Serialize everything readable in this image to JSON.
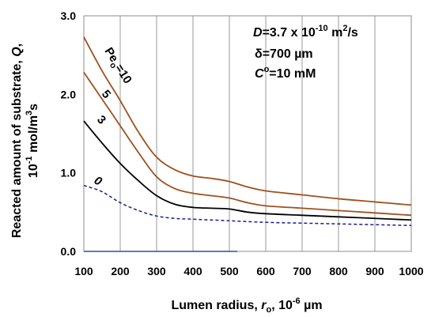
{
  "chart_data": {
    "type": "line",
    "xlabel_prefix": "Lumen radius, ",
    "xlabel_var": "r",
    "xlabel_sub": "o",
    "xlabel_unit_pre": ", 10",
    "xlabel_unit_exp": "-6",
    "xlabel_unit_post": " µm",
    "ylabel_line1_pre": "Reacted amount of substrate, ",
    "ylabel_line1_var": "Q",
    "ylabel_line1_post": ",",
    "ylabel_line2_pre": "10",
    "ylabel_line2_exp": "-1",
    "ylabel_line2_mid": " mol/m",
    "ylabel_line2_exp2": "3",
    "ylabel_line2_post": "s",
    "xlim": [
      100,
      1000
    ],
    "ylim": [
      0,
      3.0
    ],
    "xticks": [
      100,
      200,
      300,
      400,
      500,
      600,
      700,
      800,
      900,
      1000
    ],
    "yticks": [
      0,
      1,
      2,
      3
    ],
    "ytick_labels": [
      "0.0",
      "1.0",
      "2.0",
      "3.0"
    ],
    "grid": "vertical",
    "annotations": {
      "D_var": "D",
      "D_val": "=3.7 x 10",
      "D_exp": "-10",
      "D_unit": " m",
      "D_unit_exp": "2",
      "D_unit_post": "/s",
      "delta": "δ=700 µm",
      "C_var": "C",
      "C_sup": "o",
      "C_val": "=10 mM"
    },
    "series": [
      {
        "label_pre": "Pe",
        "label_sub": "o",
        "label_post": "=10",
        "color": "#a0501e",
        "dash": "none",
        "x": [
          100,
          150,
          200,
          250,
          300,
          350,
          400,
          450,
          500,
          550,
          600,
          700,
          800,
          900,
          1000
        ],
        "y": [
          2.73,
          2.3,
          1.92,
          1.52,
          1.2,
          1.04,
          0.96,
          0.93,
          0.89,
          0.82,
          0.77,
          0.72,
          0.67,
          0.63,
          0.59
        ]
      },
      {
        "label": "5",
        "color": "#a0501e",
        "dash": "none",
        "x": [
          100,
          150,
          200,
          250,
          300,
          350,
          400,
          450,
          500,
          550,
          600,
          700,
          800,
          900,
          1000
        ],
        "y": [
          2.28,
          1.94,
          1.6,
          1.26,
          0.95,
          0.8,
          0.74,
          0.71,
          0.68,
          0.62,
          0.58,
          0.55,
          0.52,
          0.49,
          0.46
        ]
      },
      {
        "label": "3",
        "color": "#000000",
        "dash": "none",
        "x": [
          100,
          150,
          200,
          250,
          300,
          350,
          400,
          450,
          500,
          550,
          600,
          700,
          800,
          900,
          1000
        ],
        "y": [
          1.66,
          1.38,
          1.12,
          0.9,
          0.71,
          0.6,
          0.56,
          0.55,
          0.54,
          0.5,
          0.48,
          0.46,
          0.44,
          0.42,
          0.4
        ]
      },
      {
        "label": "0",
        "color": "#1c1c8c",
        "dash": "dashed",
        "x": [
          100,
          150,
          200,
          250,
          300,
          350,
          400,
          500,
          600,
          700,
          800,
          900,
          1000
        ],
        "y": [
          0.84,
          0.76,
          0.62,
          0.52,
          0.45,
          0.42,
          0.41,
          0.39,
          0.37,
          0.36,
          0.35,
          0.34,
          0.33
        ]
      }
    ]
  }
}
